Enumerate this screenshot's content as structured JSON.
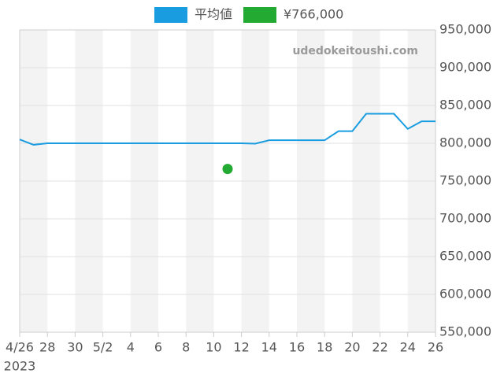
{
  "chart_data": {
    "type": "line",
    "watermark": "udedokeitoushi.com",
    "x": [
      "2023-04-26",
      "2023-04-27",
      "2023-04-28",
      "2023-04-29",
      "2023-04-30",
      "2023-05-01",
      "2023-05-02",
      "2023-05-03",
      "2023-05-04",
      "2023-05-05",
      "2023-05-06",
      "2023-05-07",
      "2023-05-08",
      "2023-05-09",
      "2023-05-10",
      "2023-05-11",
      "2023-05-12",
      "2023-05-13",
      "2023-05-14",
      "2023-05-15",
      "2023-05-16",
      "2023-05-17",
      "2023-05-18",
      "2023-05-19",
      "2023-05-20",
      "2023-05-21",
      "2023-05-22",
      "2023-05-23",
      "2023-05-24",
      "2023-05-25",
      "2023-05-26"
    ],
    "series": [
      {
        "name": "平均値",
        "color": "#1a9de0",
        "values": [
          805000,
          798000,
          800000,
          800000,
          800000,
          800000,
          800000,
          800000,
          800000,
          800000,
          800000,
          800000,
          800000,
          800000,
          800000,
          800000,
          800000,
          799500,
          804000,
          804000,
          804000,
          804000,
          804000,
          816000,
          816000,
          839000,
          839000,
          839000,
          819000,
          829000,
          829000
        ]
      },
      {
        "name": "¥766,000",
        "color": "#22aa33",
        "type": "scatter",
        "x": [
          "2023-05-11"
        ],
        "values": [
          766000
        ]
      }
    ],
    "xlim": [
      "2023-04-26",
      "2023-05-26"
    ],
    "xticks": [
      {
        "value": "2023-04-26",
        "label": "4/26"
      },
      {
        "value": "2023-04-28",
        "label": "28"
      },
      {
        "value": "2023-04-30",
        "label": "30"
      },
      {
        "value": "2023-05-02",
        "label": "5/2"
      },
      {
        "value": "2023-05-04",
        "label": "4"
      },
      {
        "value": "2023-05-06",
        "label": "6"
      },
      {
        "value": "2023-05-08",
        "label": "8"
      },
      {
        "value": "2023-05-10",
        "label": "10"
      },
      {
        "value": "2023-05-12",
        "label": "12"
      },
      {
        "value": "2023-05-14",
        "label": "14"
      },
      {
        "value": "2023-05-16",
        "label": "16"
      },
      {
        "value": "2023-05-18",
        "label": "18"
      },
      {
        "value": "2023-05-20",
        "label": "20"
      },
      {
        "value": "2023-05-22",
        "label": "22"
      },
      {
        "value": "2023-05-24",
        "label": "24"
      },
      {
        "value": "2023-05-26",
        "label": "26"
      }
    ],
    "x_sublabel": "2023",
    "ylim": [
      550000,
      950000
    ],
    "yticks": [
      {
        "value": 550000,
        "label": "550,000"
      },
      {
        "value": 600000,
        "label": "600,000"
      },
      {
        "value": 650000,
        "label": "650,000"
      },
      {
        "value": 700000,
        "label": "700,000"
      },
      {
        "value": 750000,
        "label": "750,000"
      },
      {
        "value": 800000,
        "label": "800,000"
      },
      {
        "value": 850000,
        "label": "850,000"
      },
      {
        "value": 900000,
        "label": "900,000"
      },
      {
        "value": 950000,
        "label": "950,000"
      }
    ],
    "grid": true,
    "legend": "top"
  }
}
